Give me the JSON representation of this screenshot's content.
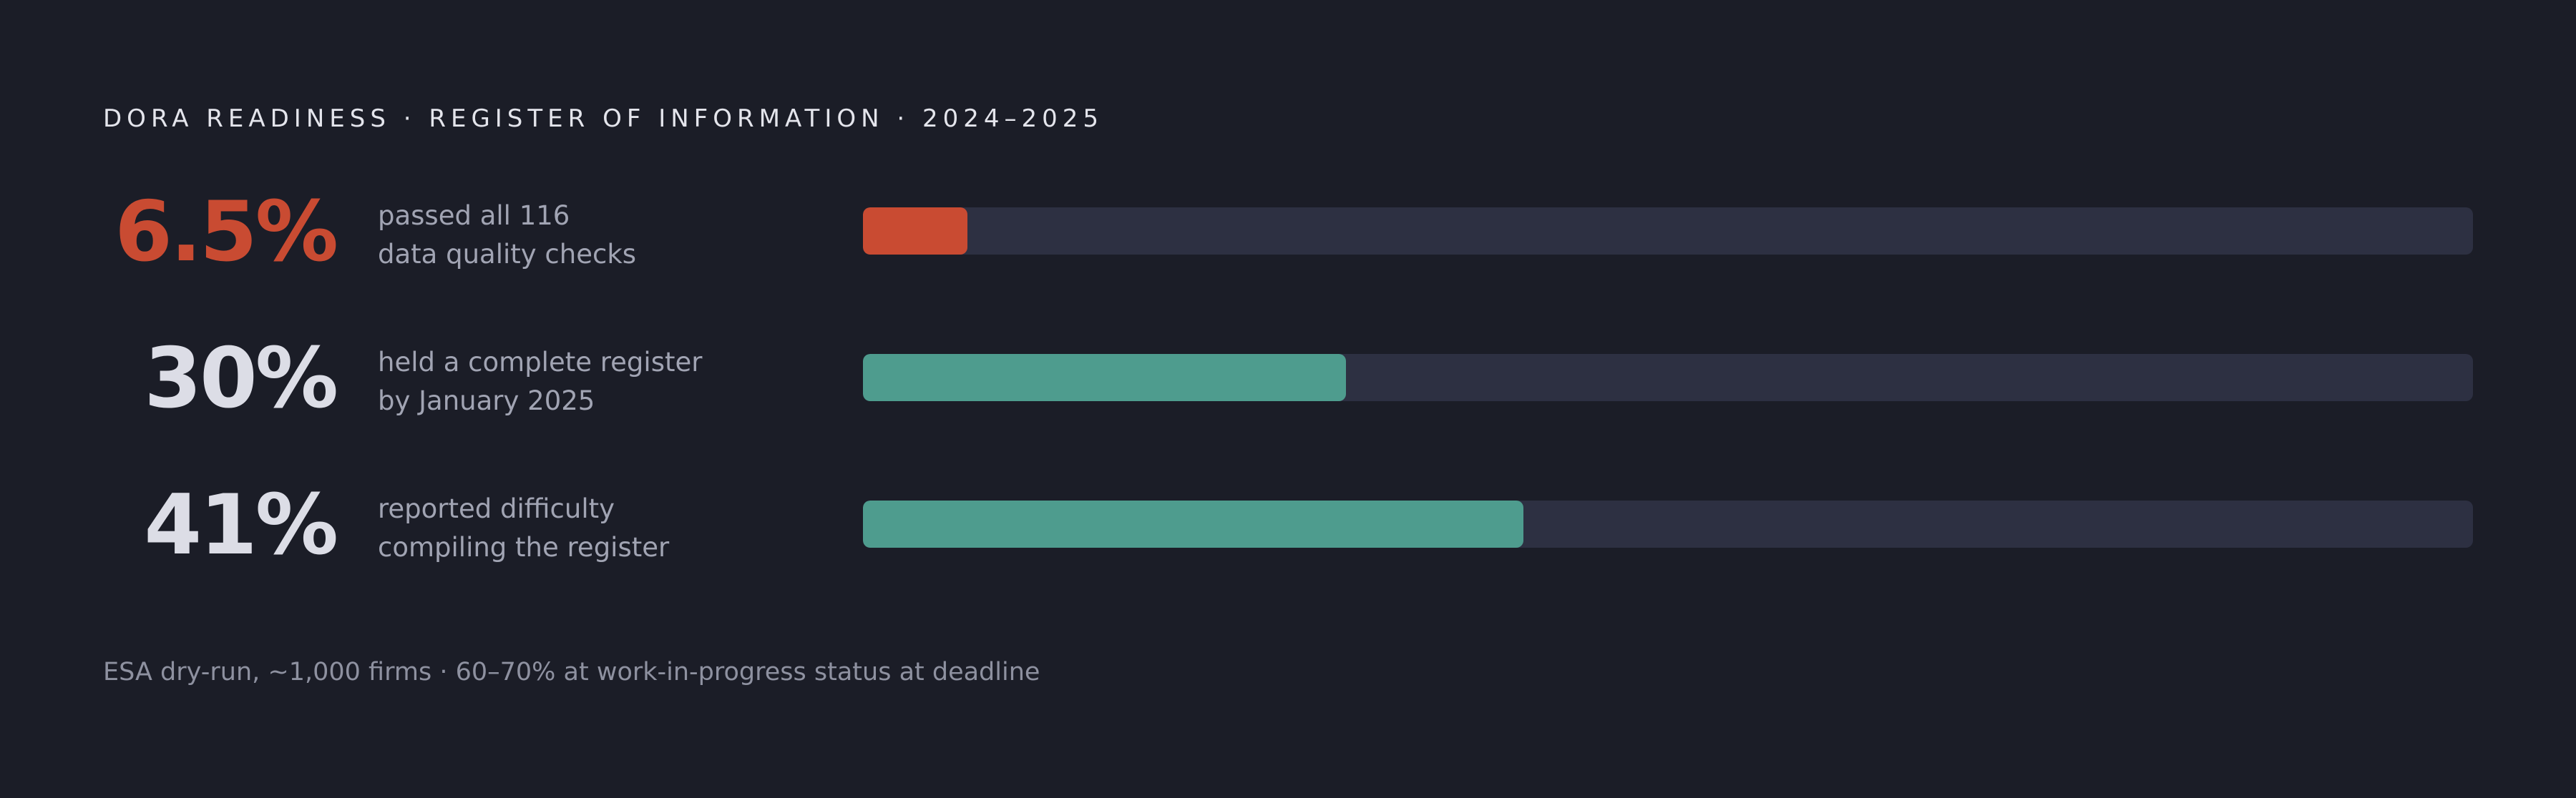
{
  "title": "DORA READINESS · REGISTER OF INFORMATION · 2024–2025",
  "colors": {
    "background": "#1b1d27",
    "track": "#2d3042",
    "accent_red": "#c94b32",
    "accent_teal": "#4e9c8e",
    "value_light": "#dcdde6"
  },
  "chart_data": {
    "type": "bar",
    "orientation": "horizontal",
    "xlim": [
      0,
      100
    ],
    "unit": "%",
    "categories": [
      "passed all 116 data quality checks",
      "held a complete register by January 2025",
      "reported difficulty compiling the register"
    ],
    "values": [
      6.5,
      30,
      41
    ],
    "value_labels": [
      "6.5%",
      "30%",
      "41%"
    ],
    "label_lines": [
      [
        "passed all 116",
        "data quality checks"
      ],
      [
        "held a complete register",
        "by January 2025"
      ],
      [
        "reported difficulty",
        "compiling the register"
      ]
    ],
    "bar_colors": [
      "#c94b32",
      "#4e9c8e",
      "#4e9c8e"
    ],
    "value_colors": [
      "#c94b32",
      "#dcdde6",
      "#dcdde6"
    ]
  },
  "footnote": "ESA dry-run, ~1,000 firms · 60–70% at work-in-progress status at deadline"
}
